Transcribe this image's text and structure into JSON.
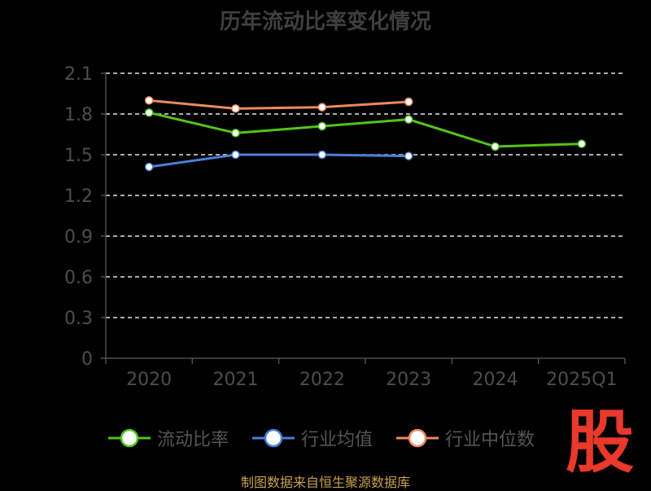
{
  "title": "历年流动比率变化情况",
  "source_text": "制图数据来自恒生聚源数据库",
  "logo_text": "股",
  "chart_data": {
    "type": "line",
    "categories": [
      "2020",
      "2021",
      "2022",
      "2023",
      "2024",
      "2025Q1"
    ],
    "ylim": [
      0,
      2.1
    ],
    "yticks": [
      "0",
      "0.3",
      "0.6",
      "0.9",
      "1.2",
      "1.5",
      "1.8",
      "2.1"
    ],
    "grid": true,
    "legend_position": "bottom",
    "series": [
      {
        "name": "流动比率",
        "color": "#52c41a",
        "values": [
          1.81,
          1.66,
          1.71,
          1.76,
          1.56,
          1.58
        ]
      },
      {
        "name": "行业均值",
        "color": "#4a7fd6",
        "values": [
          1.41,
          1.5,
          1.5,
          1.49,
          null,
          null
        ]
      },
      {
        "name": "行业中位数",
        "color": "#f08a5d",
        "values": [
          1.9,
          1.84,
          1.85,
          1.89,
          null,
          null
        ]
      }
    ]
  },
  "colors": {
    "axis": "#4d4d4d",
    "grid": "#e6e6e6",
    "tick_text": "#4d4d4d"
  }
}
